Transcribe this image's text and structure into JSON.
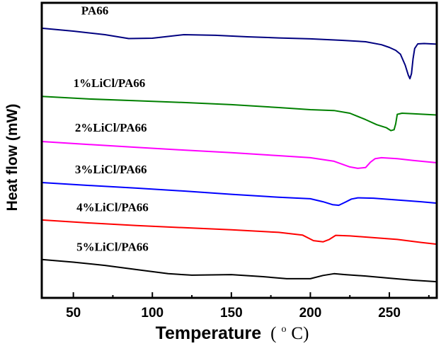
{
  "chart_data": {
    "type": "line",
    "title": "",
    "xlabel": "Temperature",
    "xlabel_unit_prefix": "(",
    "xlabel_unit_sup": "o",
    "xlabel_unit_suffix": "C)",
    "ylabel": "Heat flow (mW)",
    "xlim": [
      30,
      280
    ],
    "ylim": [
      0,
      100
    ],
    "y_units": "arbitrary (relative, no y tick labels shown)",
    "x_ticks": [
      50,
      100,
      150,
      200,
      250
    ],
    "x_tick_labels": [
      "50",
      "100",
      "150",
      "200",
      "250"
    ],
    "x_minor_ticks": [
      75,
      125,
      175,
      225,
      275
    ],
    "grid": false,
    "legend": "inline labels above each curve",
    "series": [
      {
        "name": "PA66",
        "color": "#000080",
        "x": [
          30,
          50,
          70,
          85,
          100,
          120,
          140,
          160,
          180,
          200,
          220,
          235,
          245,
          250,
          254,
          257,
          260,
          262,
          263,
          264,
          265,
          266,
          268,
          272,
          280
        ],
        "y": [
          91.4,
          90.4,
          89.2,
          87.9,
          88.0,
          89.2,
          89.0,
          88.5,
          88.1,
          87.8,
          87.3,
          86.8,
          85.8,
          84.9,
          83.9,
          82.6,
          78.9,
          75.5,
          74.3,
          76.0,
          81.0,
          84.5,
          86.1,
          86.2,
          86.0
        ]
      },
      {
        "name": "1%LiCl/PA66",
        "color": "#008000",
        "x": [
          30,
          60,
          90,
          120,
          150,
          180,
          200,
          215,
          225,
          235,
          242,
          248,
          251,
          253,
          254,
          255,
          258,
          265,
          280
        ],
        "y": [
          68.3,
          67.4,
          66.8,
          66.2,
          65.5,
          64.5,
          63.8,
          63.5,
          62.6,
          60.4,
          58.7,
          57.7,
          56.7,
          57.0,
          59.0,
          62.2,
          62.6,
          62.4,
          62.0
        ]
      },
      {
        "name": "2%LiCl/PA66",
        "color": "#ff00ff",
        "x": [
          30,
          60,
          90,
          120,
          150,
          180,
          200,
          215,
          225,
          230,
          235,
          238,
          241,
          245,
          255,
          265,
          280
        ],
        "y": [
          53.0,
          52.0,
          51.0,
          50.1,
          49.2,
          48.2,
          47.5,
          46.3,
          44.4,
          43.9,
          44.2,
          46.0,
          47.2,
          47.5,
          47.2,
          46.6,
          45.8
        ]
      },
      {
        "name": "3%LiCl/PA66",
        "color": "#0000ff",
        "x": [
          30,
          60,
          90,
          120,
          150,
          180,
          200,
          208,
          214,
          218,
          222,
          226,
          230,
          240,
          255,
          270,
          280
        ],
        "y": [
          39.1,
          38.1,
          37.2,
          36.2,
          35.1,
          34.1,
          33.6,
          32.6,
          31.6,
          31.4,
          32.4,
          33.5,
          33.9,
          33.8,
          33.2,
          32.6,
          32.1
        ]
      },
      {
        "name": "4%LiCl/PA66",
        "color": "#ff0000",
        "x": [
          30,
          60,
          90,
          120,
          150,
          180,
          195,
          202,
          208,
          212,
          216,
          225,
          240,
          255,
          270,
          280
        ],
        "y": [
          26.4,
          25.4,
          24.5,
          23.8,
          23.1,
          22.2,
          21.3,
          19.4,
          19.0,
          19.8,
          21.2,
          21.0,
          20.4,
          19.8,
          18.8,
          18.2
        ]
      },
      {
        "name": "5%LiCl/PA66",
        "color": "#000000",
        "x": [
          30,
          50,
          70,
          90,
          110,
          125,
          150,
          170,
          185,
          200,
          208,
          215,
          222,
          235,
          250,
          265,
          280
        ],
        "y": [
          13.0,
          12.1,
          11.0,
          9.6,
          8.2,
          7.7,
          7.9,
          7.2,
          6.5,
          6.5,
          7.6,
          8.2,
          7.9,
          7.4,
          6.7,
          6.0,
          5.5
        ]
      }
    ],
    "labels": [
      {
        "text": "PA66",
        "series": "PA66",
        "x": 55,
        "y": 96
      },
      {
        "text": "1%LiCl/PA66",
        "series": "1%LiCl/PA66",
        "x": 50,
        "y": 71.5
      },
      {
        "text": "2%LiCl/PA66",
        "series": "2%LiCl/PA66",
        "x": 51,
        "y": 56.3
      },
      {
        "text": "3%LiCl/PA66",
        "series": "3%LiCl/PA66",
        "x": 51,
        "y": 42.2
      },
      {
        "text": "4%LiCl/PA66",
        "series": "4%LiCl/PA66",
        "x": 52,
        "y": 29.4
      },
      {
        "text": "5%LiCl/PA66",
        "series": "5%LiCl/PA66",
        "x": 52,
        "y": 16.0
      }
    ]
  }
}
